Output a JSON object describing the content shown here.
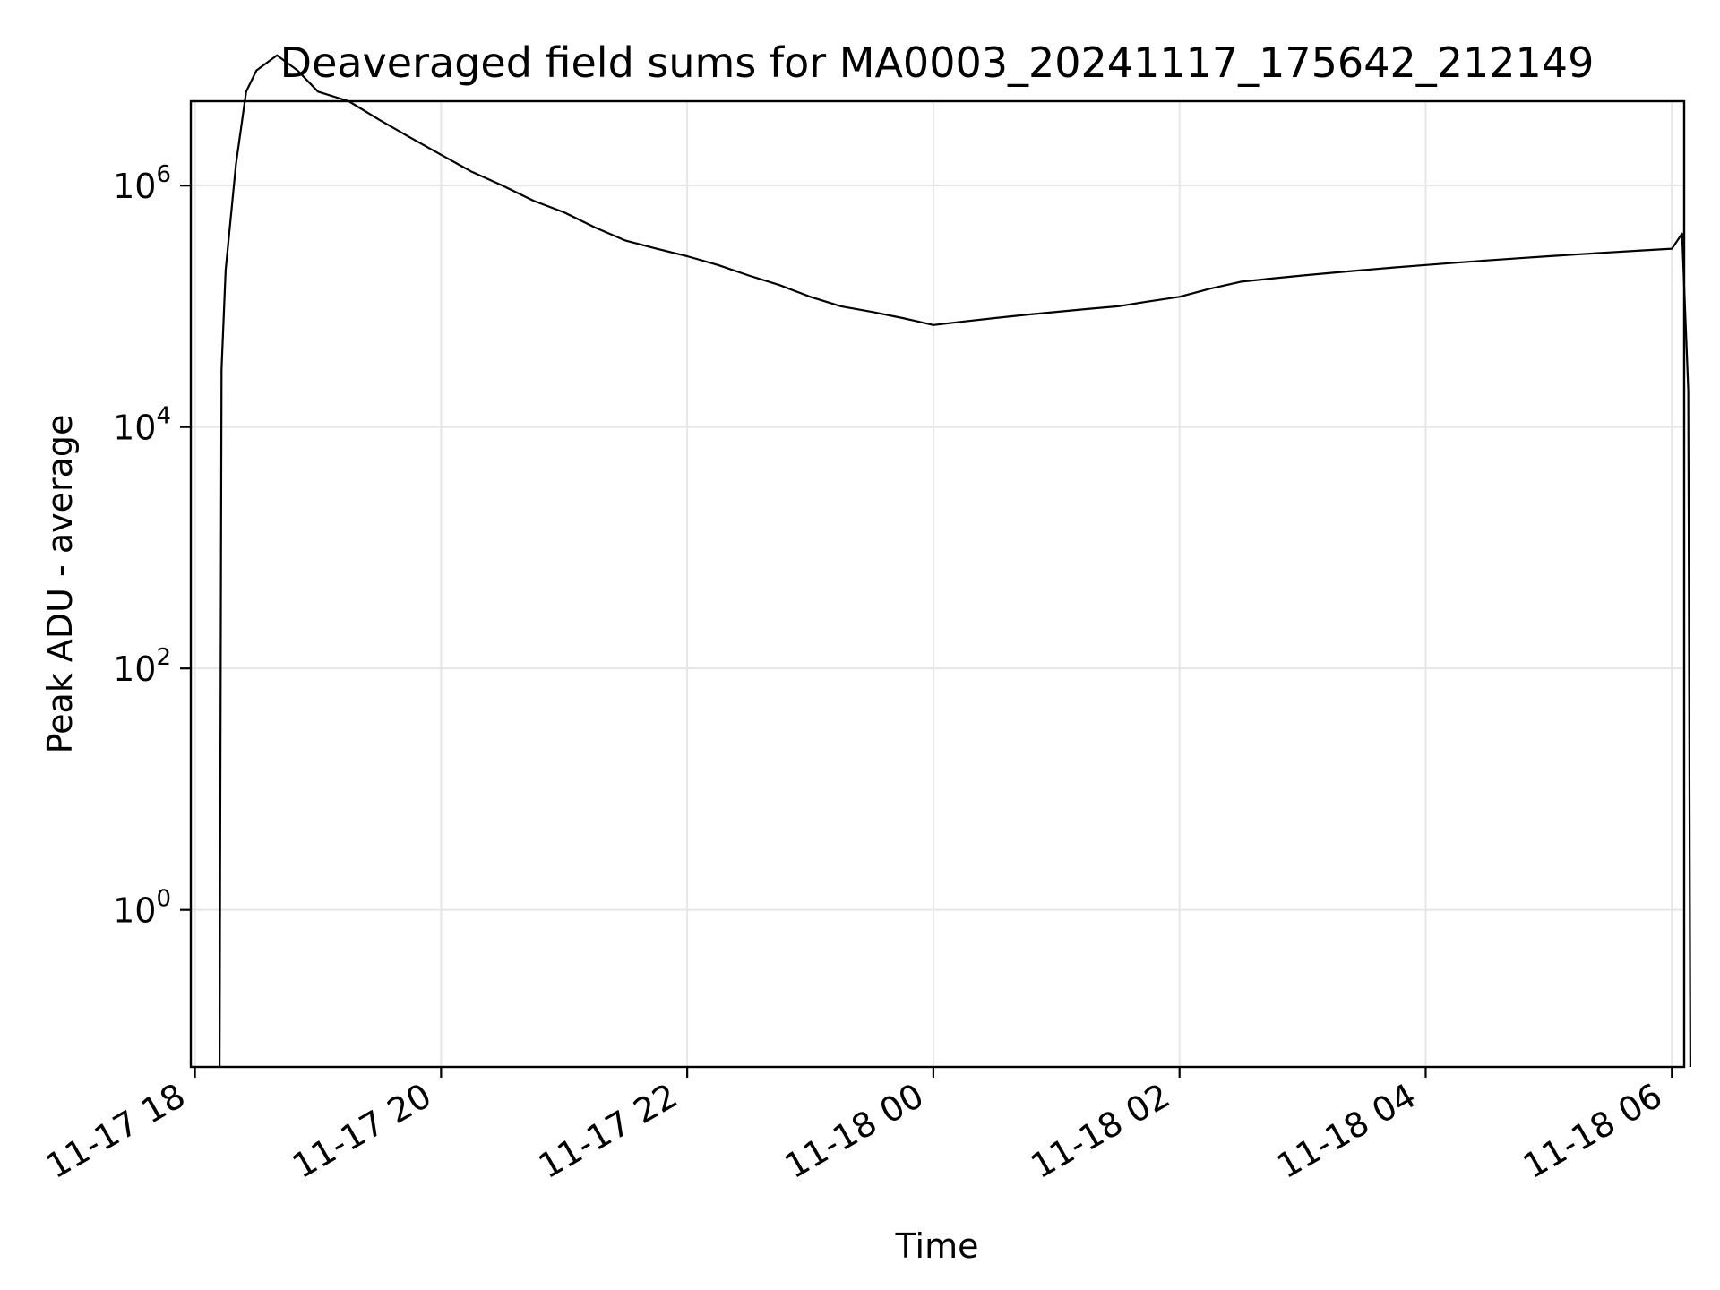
{
  "chart_data": {
    "type": "line",
    "title": "Deaveraged field sums for MA0003_20241117_175642_212149",
    "xlabel": "Time",
    "ylabel": "Peak ADU - average",
    "y_scale": "log",
    "ylim": [
      0.05,
      5000000
    ],
    "xlim": [
      "2024-11-17 17:58",
      "2024-11-18 06:06"
    ],
    "x_ticks": [
      {
        "label": "11-17 18",
        "value": "2024-11-17 18:00"
      },
      {
        "label": "11-17 20",
        "value": "2024-11-17 20:00"
      },
      {
        "label": "11-17 22",
        "value": "2024-11-17 22:00"
      },
      {
        "label": "11-18 00",
        "value": "2024-11-18 00:00"
      },
      {
        "label": "11-18 02",
        "value": "2024-11-18 02:00"
      },
      {
        "label": "11-18 04",
        "value": "2024-11-18 04:00"
      },
      {
        "label": "11-18 06",
        "value": "2024-11-18 06:00"
      }
    ],
    "y_ticks": [
      {
        "base": "10",
        "exp": "0",
        "value": 1
      },
      {
        "base": "10",
        "exp": "2",
        "value": 100
      },
      {
        "base": "10",
        "exp": "4",
        "value": 10000
      },
      {
        "base": "10",
        "exp": "6",
        "value": 1000000
      }
    ],
    "grid": true,
    "legend": "none",
    "line_color": "#000000",
    "grid_color": "#e6e6e6",
    "series_note_excluded": true,
    "series": [
      {
        "x": [
          "2024-11-17 18:12",
          "2024-11-17 18:13",
          "2024-11-17 18:15",
          "2024-11-17 18:20",
          "2024-11-17 18:25",
          "2024-11-17 18:30",
          "2024-11-17 18:40",
          "2024-11-17 18:50",
          "2024-11-17 19:00",
          "2024-11-17 19:15",
          "2024-11-17 19:30",
          "2024-11-17 19:45",
          "2024-11-17 20:00",
          "2024-11-17 20:15",
          "2024-11-17 20:30",
          "2024-11-17 20:45",
          "2024-11-17 21:00",
          "2024-11-17 21:15",
          "2024-11-17 21:30",
          "2024-11-17 21:45",
          "2024-11-17 22:00",
          "2024-11-17 22:15",
          "2024-11-17 22:30",
          "2024-11-17 22:45",
          "2024-11-17 23:00",
          "2024-11-17 23:15",
          "2024-11-17 23:30",
          "2024-11-17 23:45",
          "2024-11-18 00:00",
          "2024-11-18 00:15",
          "2024-11-18 00:30",
          "2024-11-18 00:45",
          "2024-11-18 01:00",
          "2024-11-18 01:15",
          "2024-11-18 01:30",
          "2024-11-18 01:45",
          "2024-11-18 02:00",
          "2024-11-18 02:15",
          "2024-11-18 02:30",
          "2024-11-18 02:45",
          "2024-11-18 03:00",
          "2024-11-18 03:15",
          "2024-11-18 03:30",
          "2024-11-18 03:45",
          "2024-11-18 04:00",
          "2024-11-18 04:15",
          "2024-11-18 04:30",
          "2024-11-18 04:45",
          "2024-11-18 05:00",
          "2024-11-18 05:15",
          "2024-11-18 05:30",
          "2024-11-18 05:45",
          "2024-11-18 06:00",
          "2024-11-18 06:05",
          "2024-11-18 06:08",
          "2024-11-18 06:09"
        ],
        "y": [
          0.05,
          30000,
          200000,
          1500000,
          6000000,
          9000000,
          12000000,
          9000000,
          6000000,
          5000000,
          3500000,
          2500000,
          1800000,
          1300000,
          1000000,
          750000,
          600000,
          450000,
          350000,
          300000,
          260000,
          220000,
          180000,
          150000,
          120000,
          100000,
          90000,
          80000,
          70000,
          75000,
          80000,
          85000,
          90000,
          95000,
          100000,
          110000,
          120000,
          140000,
          160000,
          170000,
          180000,
          190000,
          200000,
          210000,
          220000,
          230000,
          240000,
          250000,
          260000,
          270000,
          280000,
          290000,
          300000,
          400000,
          20000,
          0.05
        ]
      }
    ]
  }
}
